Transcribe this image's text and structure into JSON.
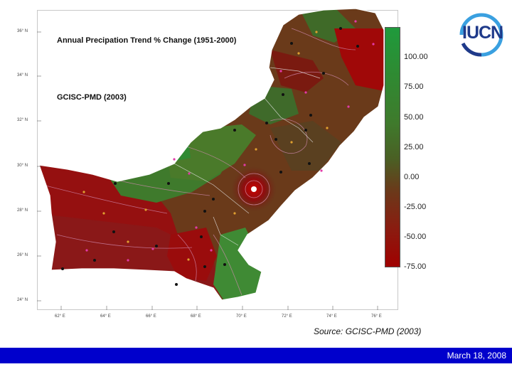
{
  "map": {
    "title": "Annual Precipation Trend % Change (1951-2000)",
    "subtitle": "GCISC-PMD (2003)",
    "lat_labels": [
      "36° N",
      "34° N",
      "32° N",
      "30° N",
      "28° N",
      "26° N",
      "24° N"
    ],
    "lon_labels": [
      "62° E",
      "64° E",
      "66° E",
      "68° E",
      "70° E",
      "72° E",
      "74° E",
      "76° E"
    ]
  },
  "legend": {
    "labels": [
      "100.00",
      "75.00",
      "50.00",
      "25.00",
      "0.00",
      "-25.00",
      "-50.00",
      "-75.00"
    ],
    "colors": {
      "high": "#1f9a3c",
      "mid": "#4a5f24",
      "low": "#a00000"
    }
  },
  "logo": {
    "text": "IUCN"
  },
  "source": "Source: GCISC-PMD (2003)",
  "footer": {
    "date": "March 18, 2008",
    "background": "#0000cc"
  }
}
